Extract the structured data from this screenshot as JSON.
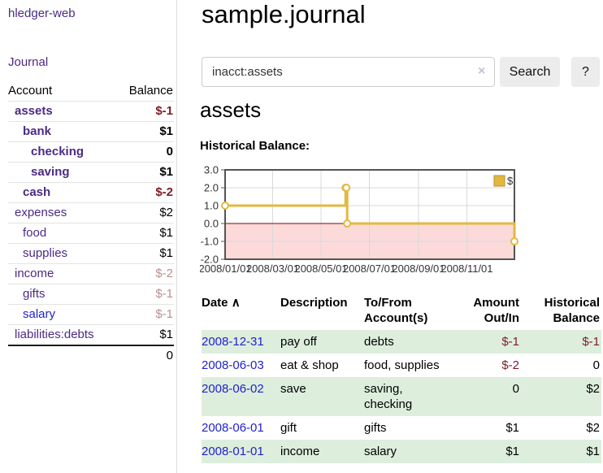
{
  "app": {
    "brand": "hledger-web",
    "nav_journal": "Journal"
  },
  "sidebar": {
    "table": {
      "col_account": "Account",
      "col_balance": "Balance"
    },
    "accounts": [
      {
        "name": "assets",
        "depth": 1,
        "bold": true,
        "link_color": "purple",
        "balance": "$-1",
        "balance_style": "neg-strong"
      },
      {
        "name": "bank",
        "depth": 2,
        "bold": true,
        "link_color": "purple",
        "balance": "$1",
        "balance_style": "pos"
      },
      {
        "name": "checking",
        "depth": 3,
        "bold": true,
        "link_color": "purple",
        "balance": "0",
        "balance_style": "pos"
      },
      {
        "name": "saving",
        "depth": 3,
        "bold": true,
        "link_color": "purple",
        "balance": "$1",
        "balance_style": "pos"
      },
      {
        "name": "cash",
        "depth": 2,
        "bold": true,
        "link_color": "purple",
        "balance": "$-2",
        "balance_style": "neg-strong"
      },
      {
        "name": "expenses",
        "depth": 1,
        "bold": false,
        "link_color": "purple",
        "balance": "$2",
        "balance_style": "pos"
      },
      {
        "name": "food",
        "depth": 2,
        "bold": false,
        "link_color": "purple",
        "balance": "$1",
        "balance_style": "pos"
      },
      {
        "name": "supplies",
        "depth": 2,
        "bold": false,
        "link_color": "purple",
        "balance": "$1",
        "balance_style": "pos"
      },
      {
        "name": "income",
        "depth": 1,
        "bold": false,
        "link_color": "purple",
        "balance": "$-2",
        "balance_style": "neg-soft"
      },
      {
        "name": "gifts",
        "depth": 2,
        "bold": false,
        "link_color": "purple",
        "balance": "$-1",
        "balance_style": "neg-soft"
      },
      {
        "name": "salary",
        "depth": 2,
        "bold": false,
        "link_color": "blue",
        "balance": "$-1",
        "balance_style": "neg-soft"
      },
      {
        "name": "liabilities:debts",
        "depth": 1,
        "bold": false,
        "link_color": "purple",
        "balance": "$1",
        "balance_style": "pos"
      }
    ],
    "total": "0"
  },
  "header": {
    "title": "sample.journal"
  },
  "search": {
    "value": "inacct:assets",
    "clear_icon": "×",
    "button": "Search",
    "help_button": "?"
  },
  "account_page": {
    "title": "assets",
    "chart_label": "Historical Balance:"
  },
  "chart_data": {
    "type": "line",
    "step": true,
    "title": "Historical Balance",
    "legend": "$",
    "legend_position": "top-right",
    "grid": true,
    "x_domain": [
      "2008-01-01",
      "2008-12-31"
    ],
    "ylim": [
      -2,
      3
    ],
    "y_ticks": [
      3,
      2,
      1,
      0,
      -1,
      -2
    ],
    "y_tick_labels": [
      "3.0",
      "2.0",
      "1.0",
      "0.0",
      "-1.0",
      "-2.0"
    ],
    "x_ticks": [
      "2008-01-01",
      "2008-03-01",
      "2008-05-01",
      "2008-07-01",
      "2008-09-01",
      "2008-11-01"
    ],
    "x_tick_labels": [
      "2008/01/01",
      "2008/03/01",
      "2008/05/01",
      "2008/07/01",
      "2008/09/01",
      "2008/11/01"
    ],
    "series": [
      {
        "name": "$",
        "points": [
          [
            "2008-01-01",
            1
          ],
          [
            "2008-06-01",
            2
          ],
          [
            "2008-06-02",
            2
          ],
          [
            "2008-06-03",
            0
          ],
          [
            "2008-12-31",
            -1
          ]
        ]
      }
    ],
    "colors": {
      "line": "#e3b841",
      "marker_fill": "#ffffff",
      "negative_area": "#fcdada",
      "zero_line": "#8b0000",
      "grid": "#d9d9d9",
      "border": "#545454"
    }
  },
  "transactions": {
    "columns": {
      "date": "Date",
      "sort_icon": "∧",
      "description": "Description",
      "accounts": "To/From Account(s)",
      "amount": "Amount Out/In",
      "balance": "Historical Balance"
    },
    "rows": [
      {
        "date": "2008-12-31",
        "description": "pay off",
        "accounts": "debts",
        "amount": "$-1",
        "amount_neg": true,
        "balance": "$-1",
        "balance_neg": true
      },
      {
        "date": "2008-06-03",
        "description": "eat & shop",
        "accounts": "food, supplies",
        "amount": "$-2",
        "amount_neg": true,
        "balance": "0",
        "balance_neg": false
      },
      {
        "date": "2008-06-02",
        "description": "save",
        "accounts": "saving, checking",
        "amount": "0",
        "amount_neg": false,
        "balance": "$2",
        "balance_neg": false
      },
      {
        "date": "2008-06-01",
        "description": "gift",
        "accounts": "gifts",
        "amount": "$1",
        "amount_neg": false,
        "balance": "$2",
        "balance_neg": false
      },
      {
        "date": "2008-01-01",
        "description": "income",
        "accounts": "salary",
        "amount": "$1",
        "amount_neg": false,
        "balance": "$1",
        "balance_neg": false
      }
    ]
  }
}
